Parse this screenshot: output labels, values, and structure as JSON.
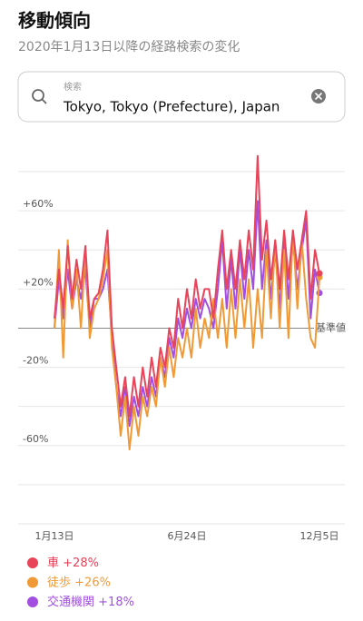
{
  "header": {
    "title": "移動傾向",
    "subtitle": "2020年1月13日以降の経路検索の変化"
  },
  "search": {
    "label": "検索",
    "value": "Tokyo, Tokyo (Prefecture), Japan"
  },
  "chart_data": {
    "type": "line",
    "categories": [
      "1月13日",
      null,
      null,
      null,
      null,
      null,
      null,
      null,
      null,
      null,
      null,
      null,
      null,
      null,
      null,
      null,
      null,
      null,
      null,
      null,
      null,
      null,
      null,
      null,
      null,
      null,
      null,
      null,
      null,
      null,
      "6月24日",
      null,
      null,
      null,
      null,
      null,
      null,
      null,
      null,
      null,
      null,
      null,
      null,
      null,
      null,
      null,
      null,
      null,
      null,
      null,
      null,
      null,
      null,
      null,
      null,
      null,
      null,
      null,
      null,
      null,
      "12月5日"
    ],
    "series": [
      {
        "name": "車",
        "change_label": "+28%",
        "color": "#e8445a",
        "values": [
          5,
          30,
          10,
          42,
          15,
          35,
          20,
          42,
          5,
          15,
          18,
          30,
          50,
          0,
          -20,
          -40,
          -25,
          -45,
          -25,
          -40,
          -20,
          -35,
          -15,
          -30,
          -10,
          -20,
          0,
          -10,
          15,
          0,
          20,
          5,
          25,
          10,
          20,
          20,
          5,
          30,
          50,
          20,
          40,
          20,
          45,
          25,
          50,
          30,
          88,
          35,
          55,
          25,
          45,
          20,
          50,
          25,
          50,
          30,
          45,
          60,
          15,
          40,
          28
        ]
      },
      {
        "name": "徒歩",
        "change_label": "+26%",
        "color": "#f09a37",
        "values": [
          0,
          40,
          -15,
          45,
          10,
          30,
          0,
          40,
          -5,
          10,
          15,
          25,
          40,
          -10,
          -30,
          -55,
          -35,
          -62,
          -40,
          -55,
          -35,
          -45,
          -30,
          -40,
          -15,
          -30,
          -10,
          -25,
          -5,
          -15,
          0,
          -15,
          10,
          -10,
          5,
          -5,
          15,
          -5,
          15,
          -10,
          20,
          -5,
          25,
          0,
          25,
          -10,
          20,
          -5,
          40,
          5,
          45,
          0,
          40,
          -5,
          50,
          10,
          45,
          15,
          -5,
          -10,
          26
        ]
      },
      {
        "name": "交通機関",
        "change_label": "+18%",
        "color": "#a24fe0",
        "values": [
          0,
          25,
          5,
          30,
          10,
          25,
          15,
          30,
          0,
          15,
          15,
          20,
          30,
          -5,
          -30,
          -45,
          -30,
          -50,
          -35,
          -45,
          -30,
          -40,
          -25,
          -35,
          -15,
          -25,
          -5,
          -15,
          5,
          -5,
          10,
          0,
          15,
          5,
          15,
          10,
          0,
          20,
          45,
          10,
          35,
          10,
          40,
          15,
          40,
          20,
          65,
          20,
          45,
          15,
          40,
          10,
          45,
          15,
          45,
          20,
          40,
          55,
          5,
          30,
          18
        ]
      }
    ],
    "ylim": [
      -100,
      90
    ],
    "yticks": [
      {
        "value": 80,
        "label": null
      },
      {
        "value": 60,
        "label": "+60%"
      },
      {
        "value": 40,
        "label": null
      },
      {
        "value": 20,
        "label": "+20%"
      },
      {
        "value": 0,
        "label": "基準値"
      },
      {
        "value": -20,
        "label": "-20%"
      },
      {
        "value": -40,
        "label": null
      },
      {
        "value": -60,
        "label": "-60%"
      },
      {
        "value": -80,
        "label": null
      },
      {
        "value": -100,
        "label": null
      }
    ],
    "grid": true
  }
}
